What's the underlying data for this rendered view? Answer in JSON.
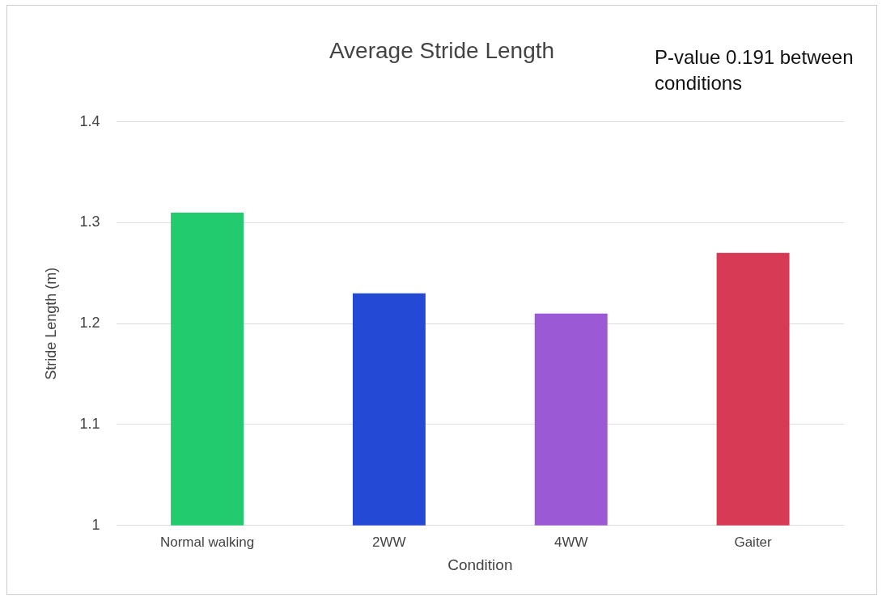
{
  "chart_data": {
    "type": "bar",
    "title": "Average Stride Length",
    "xlabel": "Condition",
    "ylabel": "Stride Length (m)",
    "categories": [
      "Normal walking",
      "2WW",
      "4WW",
      "Gaiter"
    ],
    "values": [
      1.31,
      1.23,
      1.21,
      1.27
    ],
    "colors": [
      "#22cc6e",
      "#2449d4",
      "#9b59d6",
      "#d63a54"
    ],
    "ylim": [
      1,
      1.4
    ],
    "yticks": [
      1,
      1.1,
      1.2,
      1.3,
      1.4
    ],
    "grid": "y",
    "annotations": [
      "P-value 0.191 between conditions"
    ]
  }
}
